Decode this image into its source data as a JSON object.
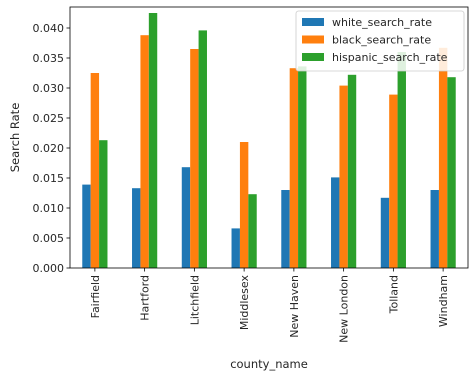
{
  "chart_data": {
    "type": "bar",
    "xlabel": "county_name",
    "ylabel": "Search Rate",
    "ylim": [
      0,
      0.0435
    ],
    "yticks": [
      "0.000",
      "0.005",
      "0.010",
      "0.015",
      "0.020",
      "0.025",
      "0.030",
      "0.035",
      "0.040"
    ],
    "categories": [
      "Fairfield",
      "Hartford",
      "Litchfield",
      "Middlesex",
      "New Haven",
      "New London",
      "Tolland",
      "Windham"
    ],
    "series": [
      {
        "name": "white_search_rate",
        "color": "#1f77b4",
        "values": [
          0.0139,
          0.0133,
          0.0168,
          0.0066,
          0.013,
          0.0151,
          0.0117,
          0.013
        ]
      },
      {
        "name": "black_search_rate",
        "color": "#ff7f0e",
        "values": [
          0.0325,
          0.0388,
          0.0365,
          0.021,
          0.0333,
          0.0304,
          0.0289,
          0.0367
        ]
      },
      {
        "name": "hispanic_search_rate",
        "color": "#2ca02c",
        "values": [
          0.0213,
          0.0425,
          0.0396,
          0.0123,
          0.0336,
          0.0322,
          0.036,
          0.0318
        ]
      }
    ],
    "grid": false,
    "legend_position": "top-right"
  }
}
